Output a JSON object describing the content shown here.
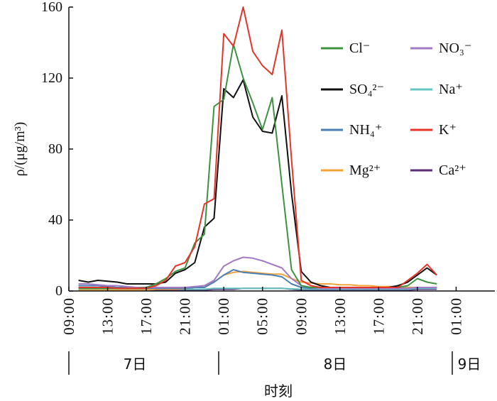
{
  "chart_data": {
    "type": "line",
    "xlabel": "时刻",
    "ylabel": "ρ/(μg/m³)",
    "xlim": [
      "7日 09:00",
      "9日 05:00"
    ],
    "ylim": [
      0,
      160
    ],
    "y_ticks": [
      0,
      40,
      80,
      120,
      160
    ],
    "x_tick_labels": [
      "09:00",
      "13:00",
      "17:00",
      "21:00",
      "01:00",
      "05:00",
      "09:00",
      "13:00",
      "17:00",
      "21:00",
      "01:00"
    ],
    "day_labels": [
      "7日",
      "8日",
      "9日"
    ],
    "legend": "top-right",
    "grid": false,
    "x": [
      "7日 10:00",
      "7日 11:00",
      "7日 12:00",
      "7日 13:00",
      "7日 14:00",
      "7日 15:00",
      "7日 16:00",
      "7日 17:00",
      "7日 18:00",
      "7日 19:00",
      "7日 20:00",
      "7日 21:00",
      "7日 22:00",
      "7日 23:00",
      "8日 00:00",
      "8日 01:00",
      "8日 02:00",
      "8日 03:00",
      "8日 04:00",
      "8日 05:00",
      "8日 06:00",
      "8日 07:00",
      "8日 08:00",
      "8日 09:00",
      "8日 10:00",
      "8日 11:00",
      "8日 12:00",
      "8日 13:00",
      "8日 14:00",
      "8日 15:00",
      "8日 16:00",
      "8日 17:00",
      "8日 18:00",
      "8日 19:00",
      "8日 20:00",
      "8日 21:00",
      "8日 22:00",
      "8日 23:00"
    ],
    "series": [
      {
        "name": "Cl⁻",
        "color": "#3f9142",
        "values": [
          1.5,
          1.5,
          1.5,
          1.5,
          1.5,
          1.5,
          1.5,
          2,
          4,
          7,
          11,
          13,
          27,
          32,
          104,
          108,
          139,
          120,
          106,
          91,
          109,
          60,
          12,
          3,
          2,
          2,
          2,
          2,
          2,
          2,
          2,
          2,
          2,
          2,
          3,
          7,
          5,
          4
        ]
      },
      {
        "name": "NO₃⁻",
        "color": "#a27ac6",
        "values": [
          4,
          4,
          3.5,
          3,
          3,
          2.5,
          2,
          2,
          2,
          2,
          2,
          2,
          2.5,
          3,
          6,
          14,
          17,
          19,
          18.5,
          17,
          15,
          13,
          7,
          3,
          2,
          1.5,
          1.5,
          1.5,
          1.5,
          1.5,
          1.5,
          1.5,
          1.5,
          1.5,
          1.5,
          2,
          2,
          2
        ]
      },
      {
        "name": "SO₄²⁻",
        "color": "#111111",
        "values": [
          6,
          5,
          6,
          5.5,
          5,
          4,
          4,
          4,
          4,
          5,
          10,
          12,
          16,
          36,
          41,
          114,
          109,
          119,
          98,
          90,
          89,
          110,
          55,
          11,
          5,
          3,
          2,
          2,
          2,
          2,
          2,
          2,
          2,
          3,
          5,
          9,
          13,
          9
        ]
      },
      {
        "name": "Na⁺",
        "color": "#67c5c2",
        "values": [
          1,
          1,
          1,
          1,
          1,
          1,
          1,
          1,
          1,
          1,
          1,
          1,
          1,
          1,
          1.5,
          1.5,
          1.5,
          1.5,
          1.5,
          1.5,
          1.5,
          1.5,
          1.2,
          1,
          1,
          1,
          1,
          1,
          1,
          1,
          1,
          1,
          1,
          1,
          1,
          1.5,
          1.5,
          1.5
        ]
      },
      {
        "name": "NH₄⁺",
        "color": "#4b7fb4",
        "values": [
          3,
          3,
          3,
          2.5,
          2,
          2,
          1.5,
          1.5,
          1.5,
          1.5,
          1.5,
          1.5,
          2,
          2,
          5,
          9,
          12,
          10.5,
          10,
          9.5,
          9,
          8,
          4,
          2,
          1.5,
          1.5,
          1.5,
          1.5,
          1.5,
          1.5,
          1.5,
          1.5,
          1.5,
          1.5,
          1.5,
          2,
          2,
          2
        ]
      },
      {
        "name": "K⁺",
        "color": "#e5352a",
        "values": [
          2,
          2,
          2,
          2,
          1.5,
          1.5,
          1.5,
          1.5,
          3,
          6,
          14,
          16,
          25,
          49,
          52,
          145,
          138,
          160,
          135,
          127,
          122,
          147,
          74,
          6,
          3,
          2,
          2,
          2,
          2,
          2,
          2,
          2,
          2,
          2,
          6,
          10,
          15,
          9
        ]
      },
      {
        "name": "Mg²⁺",
        "color": "#f2a33a",
        "values": [
          0.5,
          0.5,
          0.5,
          0.5,
          0.5,
          0.5,
          0.5,
          0.5,
          1,
          1,
          1,
          1.5,
          2,
          3,
          5,
          9,
          10.5,
          11,
          10.5,
          10,
          9.5,
          9.5,
          7,
          5,
          4.5,
          4,
          4,
          3.5,
          3.5,
          3,
          3,
          2.5,
          2.5,
          2.5,
          2,
          2,
          2,
          2
        ]
      },
      {
        "name": "Ca²⁺",
        "color": "#5b2d7d",
        "values": [
          0.5,
          0.5,
          0.5,
          0.5,
          0.5,
          0.5,
          0.5,
          0.5,
          0.5,
          0.5,
          0.5,
          0.5,
          0.5,
          0.5,
          1,
          1,
          1,
          1.5,
          1.5,
          1.5,
          1.5,
          1.5,
          1,
          0.5,
          0.5,
          0.5,
          0.5,
          0.5,
          0.5,
          0.5,
          0.5,
          0.5,
          0.5,
          0.5,
          0.5,
          1,
          1,
          1
        ]
      }
    ]
  }
}
